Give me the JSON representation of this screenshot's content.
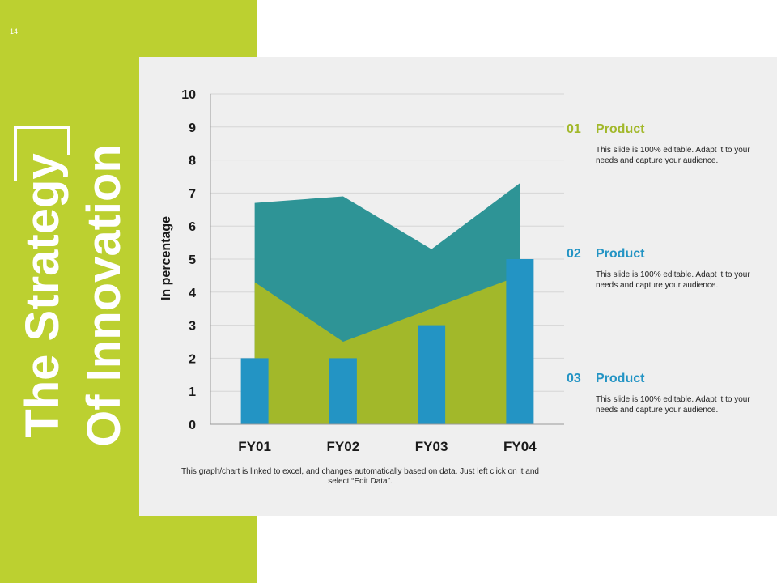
{
  "slide": {
    "number": "14",
    "title_line1": "The Strategy",
    "title_line2": "Of Innovation"
  },
  "chart_data": {
    "type": "area",
    "categories": [
      "FY01",
      "FY02",
      "FY03",
      "FY04"
    ],
    "ylabel": "In percentage",
    "ylim": [
      0,
      10
    ],
    "yticks": [
      0,
      1,
      2,
      3,
      4,
      5,
      6,
      7,
      8,
      9,
      10
    ],
    "grid": true,
    "series": [
      {
        "kind": "area",
        "values": [
          6.7,
          6.9,
          5.3,
          7.3
        ],
        "color": "#2e9496"
      },
      {
        "kind": "area",
        "values": [
          4.3,
          2.5,
          3.5,
          4.5
        ],
        "color": "#a2b82a"
      },
      {
        "kind": "bar",
        "values": [
          2,
          2,
          3,
          5
        ],
        "color": "#2394c4"
      }
    ]
  },
  "note": "This graph/chart is linked to excel, and changes automatically based on data. Just left click on it and select “Edit Data”.",
  "items": [
    {
      "num": "01",
      "heading": "Product",
      "text": "This slide is 100% editable. Adapt it to your needs and capture your audience.",
      "color": "#a2b82a"
    },
    {
      "num": "02",
      "heading": "Product",
      "text": "This slide is 100% editable. Adapt it to your needs and capture your audience.",
      "color": "#2394c4"
    },
    {
      "num": "03",
      "heading": "Product",
      "text": "This slide is 100% editable. Adapt it to your needs and capture your audience.",
      "color": "#2394c4"
    }
  ],
  "colors": {
    "band": "#bcd030",
    "panel": "#efefef"
  }
}
